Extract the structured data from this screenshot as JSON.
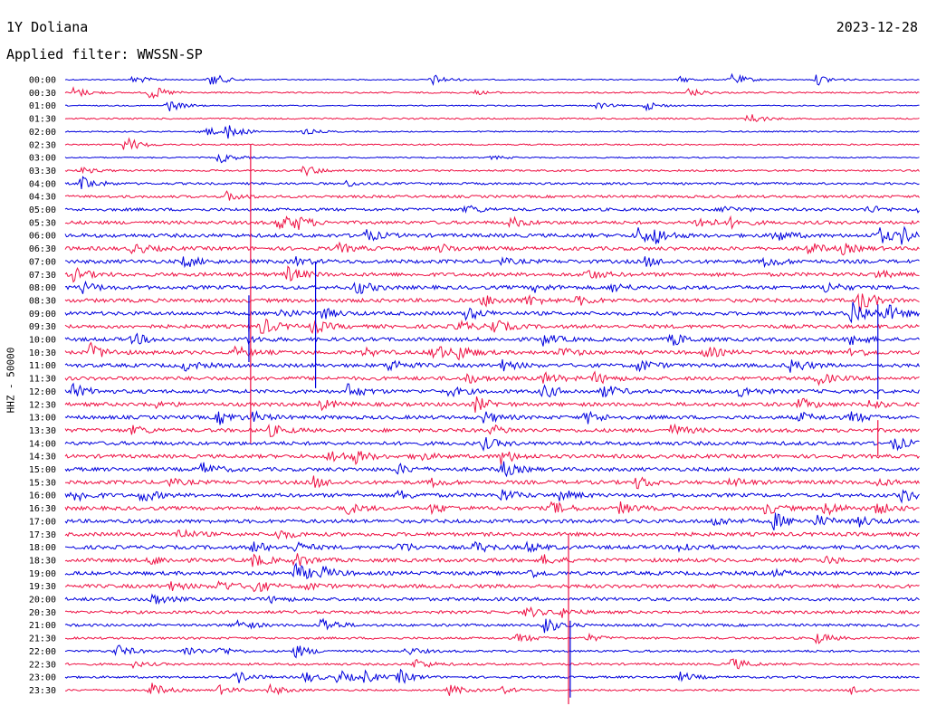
{
  "header": {
    "station": "1Y Doliana",
    "date": "2023-12-28",
    "filter": "Applied filter: WWSSN-SP"
  },
  "chart_data": {
    "type": "line",
    "title": "1Y Doliana",
    "subtitle": "Applied filter: WWSSN-SP",
    "ylabel": "HHZ - 50000",
    "date": "2023-12-28",
    "colors": [
      "#0000dd",
      "#ee1144"
    ],
    "rows": [
      "00:00",
      "00:30",
      "01:00",
      "01:30",
      "02:00",
      "02:30",
      "03:00",
      "03:30",
      "04:00",
      "04:30",
      "05:00",
      "05:30",
      "06:00",
      "06:30",
      "07:00",
      "07:30",
      "08:00",
      "08:30",
      "09:00",
      "09:30",
      "10:00",
      "10:30",
      "11:00",
      "11:30",
      "12:00",
      "12:30",
      "13:00",
      "13:30",
      "14:00",
      "14:30",
      "15:00",
      "15:30",
      "16:00",
      "16:30",
      "17:00",
      "17:30",
      "18:00",
      "18:30",
      "19:00",
      "19:30",
      "20:00",
      "20:30",
      "21:00",
      "21:30",
      "22:00",
      "22:30",
      "23:00",
      "23:30"
    ],
    "noise": [
      0.6,
      0.8,
      0.6,
      0.8,
      0.7,
      0.8,
      0.7,
      1.0,
      1.2,
      1.4,
      1.6,
      1.8,
      2.0,
      2.0,
      2.0,
      2.0,
      2.0,
      2.0,
      2.0,
      2.0,
      2.0,
      2.0,
      2.0,
      2.0,
      2.0,
      2.0,
      2.0,
      2.0,
      2.0,
      2.0,
      2.0,
      2.0,
      2.0,
      2.0,
      2.0,
      2.0,
      2.0,
      2.0,
      2.0,
      2.0,
      1.8,
      1.6,
      1.4,
      1.2,
      1.2,
      1.2,
      1.2,
      1.0
    ],
    "bursts": [
      [
        [
          0.08,
          5
        ],
        [
          0.17,
          8
        ],
        [
          0.43,
          6
        ],
        [
          0.72,
          3
        ],
        [
          0.78,
          7
        ],
        [
          0.88,
          6
        ]
      ],
      [
        [
          0.01,
          6
        ],
        [
          0.1,
          8
        ],
        [
          0.48,
          2
        ],
        [
          0.73,
          5
        ]
      ],
      [
        [
          0.12,
          7
        ],
        [
          0.62,
          4
        ],
        [
          0.68,
          5
        ]
      ],
      [
        [
          0.8,
          6
        ]
      ],
      [
        [
          0.16,
          7
        ],
        [
          0.19,
          8
        ],
        [
          0.28,
          3
        ]
      ],
      [
        [
          0.07,
          9
        ]
      ],
      [
        [
          0.18,
          6
        ],
        [
          0.5,
          2
        ]
      ],
      [
        [
          0.02,
          3
        ],
        [
          0.28,
          6
        ]
      ],
      [
        [
          0.02,
          8
        ],
        [
          0.33,
          3
        ]
      ],
      [
        [
          0.19,
          5
        ]
      ],
      [
        [
          0.47,
          5
        ],
        [
          0.77,
          4
        ],
        [
          0.94,
          4
        ],
        [
          1.0,
          6
        ]
      ],
      [
        [
          0.25,
          9
        ],
        [
          0.27,
          6
        ],
        [
          0.52,
          6
        ],
        [
          0.74,
          7
        ],
        [
          0.78,
          5
        ]
      ],
      [
        [
          0.35,
          7
        ],
        [
          0.67,
          9
        ],
        [
          0.69,
          7
        ],
        [
          0.83,
          7
        ],
        [
          0.95,
          10
        ],
        [
          0.98,
          8
        ]
      ],
      [
        [
          0.08,
          6
        ],
        [
          0.32,
          5
        ],
        [
          0.44,
          4
        ],
        [
          0.87,
          6
        ],
        [
          0.91,
          5
        ]
      ],
      [
        [
          0.14,
          6
        ],
        [
          0.27,
          4
        ],
        [
          0.51,
          3
        ],
        [
          0.68,
          5
        ],
        [
          0.82,
          6
        ]
      ],
      [
        [
          0.01,
          7
        ],
        [
          0.26,
          8
        ],
        [
          0.61,
          6
        ],
        [
          0.95,
          4
        ]
      ],
      [
        [
          0.02,
          6
        ],
        [
          0.34,
          8
        ],
        [
          0.55,
          4
        ],
        [
          0.64,
          5
        ],
        [
          0.89,
          6
        ]
      ],
      [
        [
          0.49,
          6
        ],
        [
          0.54,
          6
        ],
        [
          0.6,
          5
        ],
        [
          0.93,
          12
        ]
      ],
      [
        [
          0.25,
          5
        ],
        [
          0.3,
          6
        ],
        [
          0.47,
          7
        ],
        [
          0.92,
          16
        ],
        [
          0.96,
          10
        ]
      ],
      [
        [
          0.23,
          9
        ],
        [
          0.29,
          7
        ],
        [
          0.46,
          6
        ],
        [
          0.5,
          8
        ]
      ],
      [
        [
          0.08,
          6
        ],
        [
          0.21,
          4
        ],
        [
          0.56,
          6
        ],
        [
          0.71,
          7
        ],
        [
          0.92,
          6
        ]
      ],
      [
        [
          0.03,
          9
        ],
        [
          0.2,
          6
        ],
        [
          0.35,
          4
        ],
        [
          0.43,
          10
        ],
        [
          0.46,
          7
        ],
        [
          0.58,
          5
        ],
        [
          0.75,
          6
        ],
        [
          0.92,
          5
        ]
      ],
      [
        [
          0.14,
          5
        ],
        [
          0.38,
          7
        ],
        [
          0.51,
          6
        ],
        [
          0.67,
          7
        ],
        [
          0.85,
          8
        ]
      ],
      [
        [
          0.47,
          5
        ],
        [
          0.56,
          6
        ],
        [
          0.62,
          6
        ],
        [
          0.88,
          7
        ]
      ],
      [
        [
          0.01,
          7
        ],
        [
          0.33,
          8
        ],
        [
          0.45,
          5
        ],
        [
          0.56,
          7
        ],
        [
          0.63,
          7
        ],
        [
          0.79,
          6
        ]
      ],
      [
        [
          0.1,
          4
        ],
        [
          0.3,
          5
        ],
        [
          0.48,
          8
        ],
        [
          0.86,
          6
        ],
        [
          0.94,
          5
        ]
      ],
      [
        [
          0.18,
          7
        ],
        [
          0.22,
          5
        ],
        [
          0.49,
          6
        ],
        [
          0.61,
          7
        ],
        [
          0.86,
          5
        ],
        [
          0.92,
          6
        ]
      ],
      [
        [
          0.08,
          5
        ],
        [
          0.24,
          6
        ],
        [
          0.5,
          5
        ],
        [
          0.71,
          6
        ]
      ],
      [
        [
          0.49,
          6
        ],
        [
          0.97,
          7
        ]
      ],
      [
        [
          0.31,
          7
        ],
        [
          0.34,
          6
        ],
        [
          0.41,
          5
        ],
        [
          0.51,
          8
        ]
      ],
      [
        [
          0.16,
          7
        ],
        [
          0.39,
          5
        ],
        [
          0.51,
          9
        ]
      ],
      [
        [
          0.12,
          4
        ],
        [
          0.29,
          6
        ],
        [
          0.43,
          4
        ],
        [
          0.67,
          7
        ],
        [
          0.78,
          5
        ],
        [
          0.95,
          4
        ]
      ],
      [
        [
          0.01,
          8
        ],
        [
          0.09,
          7
        ],
        [
          0.39,
          5
        ],
        [
          0.51,
          7
        ],
        [
          0.58,
          6
        ],
        [
          0.98,
          7
        ]
      ],
      [
        [
          0.33,
          6
        ],
        [
          0.43,
          5
        ],
        [
          0.57,
          7
        ],
        [
          0.65,
          6
        ],
        [
          0.82,
          6
        ],
        [
          0.89,
          8
        ],
        [
          0.95,
          6
        ]
      ],
      [
        [
          0.76,
          5
        ],
        [
          0.83,
          9
        ],
        [
          0.88,
          6
        ],
        [
          0.93,
          5
        ]
      ],
      [
        [
          0.13,
          6
        ],
        [
          0.25,
          5
        ]
      ],
      [
        [
          0.22,
          6
        ],
        [
          0.27,
          5
        ],
        [
          0.39,
          6
        ],
        [
          0.48,
          6
        ],
        [
          0.54,
          5
        ],
        [
          0.72,
          6
        ]
      ],
      [
        [
          0.1,
          5
        ],
        [
          0.22,
          7
        ],
        [
          0.27,
          7
        ],
        [
          0.56,
          5
        ],
        [
          0.89,
          4
        ]
      ],
      [
        [
          0.27,
          10
        ],
        [
          0.3,
          6
        ],
        [
          0.54,
          5
        ],
        [
          0.83,
          3
        ]
      ],
      [
        [
          0.12,
          5
        ],
        [
          0.18,
          6
        ],
        [
          0.22,
          7
        ],
        [
          0.28,
          4
        ]
      ],
      [
        [
          0.1,
          7
        ],
        [
          0.24,
          3
        ]
      ],
      [
        [
          0.54,
          6
        ],
        [
          0.58,
          5
        ]
      ],
      [
        [
          0.2,
          7
        ],
        [
          0.3,
          9
        ],
        [
          0.56,
          10
        ]
      ],
      [
        [
          0.53,
          5
        ],
        [
          0.61,
          4
        ],
        [
          0.88,
          6
        ]
      ],
      [
        [
          0.06,
          7
        ],
        [
          0.14,
          6
        ],
        [
          0.18,
          5
        ],
        [
          0.27,
          7
        ],
        [
          0.4,
          4
        ]
      ],
      [
        [
          0.08,
          3
        ],
        [
          0.41,
          6
        ],
        [
          0.78,
          7
        ]
      ],
      [
        [
          0.2,
          7
        ],
        [
          0.28,
          6
        ],
        [
          0.32,
          7
        ],
        [
          0.35,
          6
        ],
        [
          0.39,
          8
        ],
        [
          0.72,
          5
        ]
      ],
      [
        [
          0.1,
          8
        ],
        [
          0.18,
          5
        ],
        [
          0.24,
          6
        ],
        [
          0.45,
          6
        ],
        [
          0.51,
          4
        ],
        [
          0.92,
          5
        ]
      ]
    ],
    "spikes": [
      {
        "row": 5,
        "x": 0.217,
        "up": 0,
        "down": 330
      },
      {
        "row": 18,
        "x": 0.215,
        "up": 20,
        "down": 20
      },
      {
        "row": 20,
        "x": 0.215,
        "up": 25,
        "down": 25
      },
      {
        "row": 14,
        "x": 0.293,
        "up": 0,
        "down": 140
      },
      {
        "row": 29,
        "x": 0.951,
        "up": 40,
        "down": 0
      },
      {
        "row": 18,
        "x": 0.951,
        "up": 10,
        "down": 95
      },
      {
        "row": 35,
        "x": 0.589,
        "up": 0,
        "down": 195
      },
      {
        "row": 42,
        "x": 0.591,
        "up": 5,
        "down": 80
      }
    ]
  }
}
